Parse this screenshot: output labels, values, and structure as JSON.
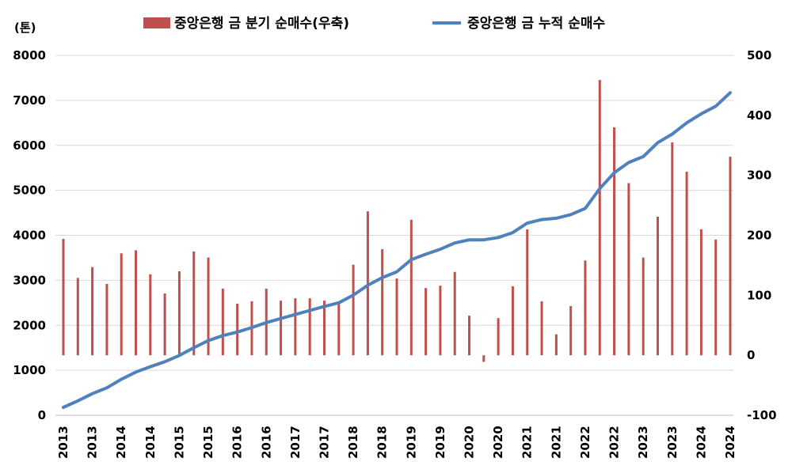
{
  "chart_data": {
    "type": "bar+line",
    "x_labels": [
      "2013",
      "2013",
      "2013",
      "2013",
      "2014",
      "2014",
      "2014",
      "2014",
      "2015",
      "2015",
      "2015",
      "2015",
      "2016",
      "2016",
      "2016",
      "2016",
      "2017",
      "2017",
      "2017",
      "2017",
      "2018",
      "2018",
      "2018",
      "2018",
      "2019",
      "2019",
      "2019",
      "2019",
      "2020",
      "2020",
      "2020",
      "2020",
      "2021",
      "2021",
      "2021",
      "2021",
      "2022",
      "2022",
      "2022",
      "2022",
      "2023",
      "2023",
      "2023",
      "2023",
      "2024",
      "2024",
      "2024"
    ],
    "axis_tick_labels": [
      "2013",
      "2013",
      "2014",
      "2014",
      "2015",
      "2015",
      "2016",
      "2016",
      "2017",
      "2017",
      "2018",
      "2018",
      "2019",
      "2019",
      "2020",
      "2020",
      "2021",
      "2021",
      "2022",
      "2022",
      "2023",
      "2023",
      "2024",
      "2024"
    ],
    "y_left": {
      "label": "(톤)",
      "min": 0,
      "max": 8000,
      "ticks": [
        "0",
        "1000",
        "2000",
        "3000",
        "4000",
        "5000",
        "6000",
        "7000",
        "8000"
      ]
    },
    "y_right": {
      "min": -100,
      "max": 500,
      "ticks": [
        "-100",
        "0",
        "100",
        "200",
        "300",
        "400",
        "500"
      ]
    },
    "legend": [
      {
        "name": "중앙은행 금 분기 순매수(우축)",
        "color": "#c0504d",
        "kind": "bar"
      },
      {
        "name": "중앙은행 금 누적 순매수",
        "color": "#4f81bd",
        "kind": "line"
      }
    ],
    "series": [
      {
        "name": "중앙은행 금 분기 순매수(우축)",
        "axis": "right",
        "values": [
          194,
          129,
          147,
          119,
          170,
          175,
          135,
          103,
          140,
          173,
          163,
          111,
          86,
          90,
          111,
          91,
          95,
          95,
          91,
          89,
          151,
          240,
          177,
          128,
          226,
          112,
          116,
          139,
          66,
          -11,
          62,
          115,
          210,
          90,
          35,
          82,
          158,
          459,
          380,
          287,
          163,
          231,
          355,
          306,
          210,
          193,
          331
        ]
      },
      {
        "name": "중앙은행 금 누적 순매수",
        "axis": "left",
        "values": [
          175,
          320,
          480,
          610,
          800,
          960,
          1080,
          1190,
          1330,
          1500,
          1660,
          1770,
          1850,
          1950,
          2060,
          2150,
          2240,
          2330,
          2420,
          2500,
          2670,
          2890,
          3060,
          3190,
          3460,
          3580,
          3690,
          3830,
          3900,
          3900,
          3950,
          4060,
          4270,
          4350,
          4380,
          4460,
          4600,
          5040,
          5390,
          5620,
          5750,
          6060,
          6250,
          6500,
          6700,
          6870,
          7170
        ]
      }
    ]
  }
}
